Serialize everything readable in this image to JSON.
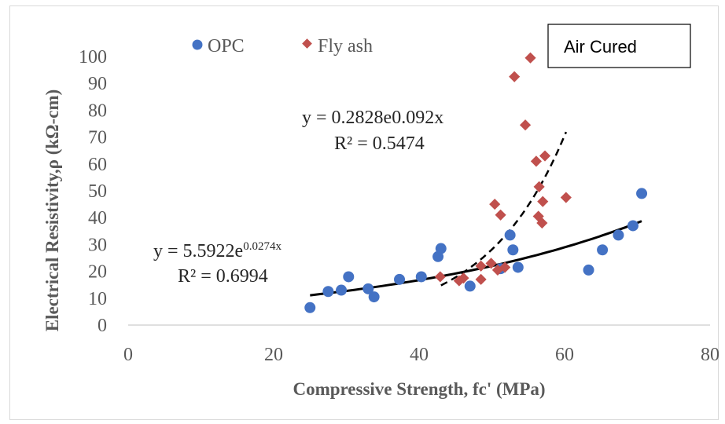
{
  "chart_data": {
    "type": "scatter",
    "title": "",
    "xlabel": "Compressive Strength, fc' (MPa)",
    "ylabel": "Electrical Resistivity,ρ (kΩ-cm)",
    "xlim": [
      0,
      80
    ],
    "ylim": [
      0,
      100
    ],
    "x_ticks": [
      0,
      20,
      40,
      60,
      80
    ],
    "y_ticks": [
      0,
      10,
      20,
      30,
      40,
      50,
      60,
      70,
      80,
      90,
      100
    ],
    "grid": false,
    "legend_position": "top",
    "annotation_box": "Air Cured",
    "series": [
      {
        "name": "OPC",
        "marker": "circle",
        "color": "#4472C4",
        "points": [
          [
            25.0,
            6.5
          ],
          [
            27.5,
            12.5
          ],
          [
            29.3,
            13.0
          ],
          [
            30.3,
            18.0
          ],
          [
            33.0,
            13.5
          ],
          [
            33.8,
            10.5
          ],
          [
            37.3,
            17.0
          ],
          [
            40.3,
            18.0
          ],
          [
            42.6,
            25.5
          ],
          [
            43.0,
            28.5
          ],
          [
            47.0,
            14.5
          ],
          [
            51.2,
            21.0
          ],
          [
            52.5,
            33.5
          ],
          [
            52.9,
            28.0
          ],
          [
            53.6,
            21.5
          ],
          [
            63.3,
            20.5
          ],
          [
            65.2,
            28.0
          ],
          [
            67.4,
            33.5
          ],
          [
            69.4,
            37.0
          ],
          [
            70.6,
            49.0
          ]
        ]
      },
      {
        "name": "Fly ash",
        "marker": "diamond",
        "color": "#C0504D",
        "points": [
          [
            42.9,
            18.0
          ],
          [
            45.5,
            16.5
          ],
          [
            46.1,
            17.5
          ],
          [
            48.5,
            17.0
          ],
          [
            48.5,
            22.0
          ],
          [
            49.9,
            23.0
          ],
          [
            50.4,
            45.0
          ],
          [
            50.8,
            20.5
          ],
          [
            51.2,
            41.0
          ],
          [
            51.8,
            21.5
          ],
          [
            53.1,
            92.5
          ],
          [
            54.6,
            74.5
          ],
          [
            55.3,
            99.5
          ],
          [
            56.1,
            61.0
          ],
          [
            56.4,
            40.5
          ],
          [
            56.5,
            51.5
          ],
          [
            56.9,
            38.0
          ],
          [
            57.0,
            46.0
          ],
          [
            57.3,
            63.0
          ],
          [
            60.2,
            47.5
          ]
        ]
      }
    ],
    "trendlines": [
      {
        "series": "OPC",
        "type": "exponential",
        "a": 5.5922,
        "b": 0.0274,
        "x_range": [
          25,
          70.6
        ],
        "style": "solid",
        "equation_base": "y = 5.5922e",
        "equation_exponent": "0.0274x",
        "r2_label": "R² = 0.6994"
      },
      {
        "series": "Fly ash",
        "type": "exponential",
        "a": 0.2828,
        "b": 0.092,
        "x_range": [
          43,
          60.2
        ],
        "style": "dashed",
        "equation_label": "y = 0.2828e0.092x",
        "r2_label": "R² = 0.5474"
      }
    ]
  }
}
